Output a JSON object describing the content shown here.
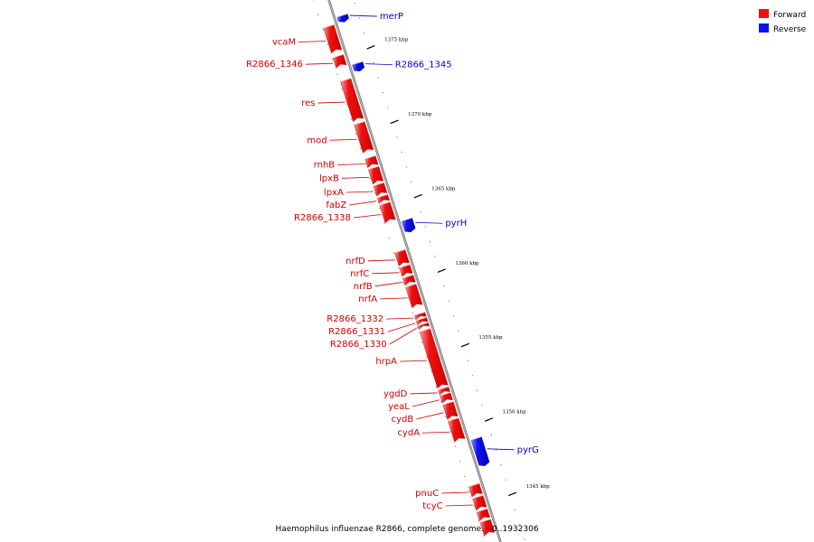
{
  "legend": {
    "forward_label": "Forward",
    "reverse_label": "Reverse",
    "forward_color": "#ee1111",
    "reverse_color": "#1111ee"
  },
  "caption": "Haemophilus influenzae R2866, complete genome. - 0..1932306",
  "ticks": [
    {
      "pos": 1375,
      "label": "1375 kbp"
    },
    {
      "pos": 1370,
      "label": "1370 kbp"
    },
    {
      "pos": 1365,
      "label": "1365 kbp"
    },
    {
      "pos": 1360,
      "label": "1360 kbp"
    },
    {
      "pos": 1355,
      "label": "1355 kbp"
    },
    {
      "pos": 1350,
      "label": "1350 kbp"
    },
    {
      "pos": 1345,
      "label": "1345 kbp"
    }
  ],
  "genes": [
    {
      "name": "merP",
      "strand": "reverse",
      "start": 1377.5,
      "end": 1377.2
    },
    {
      "name": "vcaM",
      "strand": "forward",
      "start": 1377.1,
      "end": 1375.4
    },
    {
      "name": "R2866_1346",
      "strand": "forward",
      "start": 1375.1,
      "end": 1374.4
    },
    {
      "name": "R2866_1345",
      "strand": "reverse",
      "start": 1374.3,
      "end": 1373.9
    },
    {
      "name": "res",
      "strand": "forward",
      "start": 1373.5,
      "end": 1370.8
    },
    {
      "name": "mod",
      "strand": "forward",
      "start": 1370.6,
      "end": 1368.7
    },
    {
      "name": "rnhB",
      "strand": "forward",
      "start": 1368.3,
      "end": 1367.7
    },
    {
      "name": "lpxB",
      "strand": "forward",
      "start": 1367.6,
      "end": 1366.6
    },
    {
      "name": "lpxA",
      "strand": "forward",
      "start": 1366.5,
      "end": 1365.8
    },
    {
      "name": "fabZ",
      "strand": "forward",
      "start": 1365.7,
      "end": 1365.3
    },
    {
      "name": "R2866_1338",
      "strand": "forward",
      "start": 1365.2,
      "end": 1364.0
    },
    {
      "name": "pyrH",
      "strand": "reverse",
      "start": 1363.8,
      "end": 1363.1
    },
    {
      "name": "nrfD",
      "strand": "forward",
      "start": 1362.0,
      "end": 1361.1
    },
    {
      "name": "nrfC",
      "strand": "forward",
      "start": 1361.0,
      "end": 1360.4
    },
    {
      "name": "nrfB",
      "strand": "forward",
      "start": 1360.3,
      "end": 1359.8
    },
    {
      "name": "nrfA",
      "strand": "forward",
      "start": 1359.7,
      "end": 1358.3
    },
    {
      "name": "R2866_1332",
      "strand": "forward",
      "start": 1357.8,
      "end": 1357.5
    },
    {
      "name": "R2866_1331",
      "strand": "forward",
      "start": 1357.45,
      "end": 1357.15
    },
    {
      "name": "R2866_1330",
      "strand": "forward",
      "start": 1357.1,
      "end": 1356.85
    },
    {
      "name": "hrpA",
      "strand": "forward",
      "start": 1356.7,
      "end": 1352.9
    },
    {
      "name": "ygdD",
      "strand": "forward",
      "start": 1352.8,
      "end": 1352.45
    },
    {
      "name": "yeaL",
      "strand": "forward",
      "start": 1352.4,
      "end": 1351.9
    },
    {
      "name": "cydB",
      "strand": "forward",
      "start": 1351.8,
      "end": 1350.8
    },
    {
      "name": "cydA",
      "strand": "forward",
      "start": 1350.7,
      "end": 1349.3
    },
    {
      "name": "pyrG",
      "strand": "reverse",
      "start": 1349.1,
      "end": 1347.4
    },
    {
      "name": "pnuC",
      "strand": "forward",
      "start": 1346.3,
      "end": 1345.6
    },
    {
      "name": "tcyC",
      "strand": "forward",
      "start": 1345.5,
      "end": 1344.7
    },
    {
      "name": "",
      "strand": "forward",
      "start": 1344.6,
      "end": 1344.0
    },
    {
      "name": "",
      "strand": "forward",
      "start": 1343.9,
      "end": 1343.0
    }
  ]
}
